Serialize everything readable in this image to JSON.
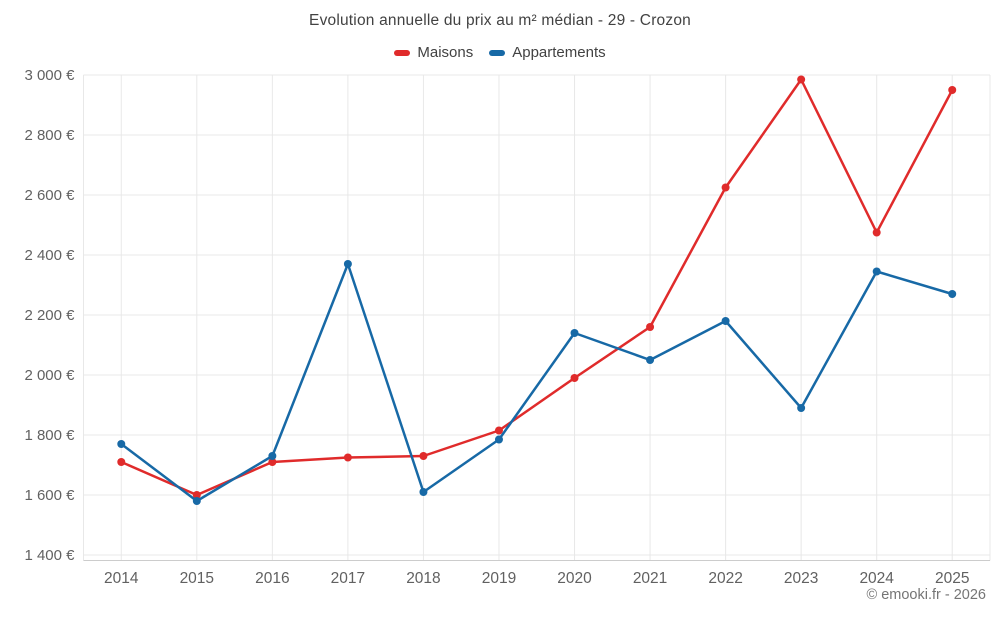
{
  "chart_data": {
    "type": "line",
    "title": "Evolution annuelle du prix au m² médian - 29 - Crozon",
    "categories": [
      "2014",
      "2015",
      "2016",
      "2017",
      "2018",
      "2019",
      "2020",
      "2021",
      "2022",
      "2023",
      "2024",
      "2025"
    ],
    "series": [
      {
        "name": "Maisons",
        "color": "#e02b2b",
        "values": [
          1710,
          1600,
          1710,
          1725,
          1730,
          1815,
          1990,
          2160,
          2625,
          2985,
          2475,
          2950
        ]
      },
      {
        "name": "Appartements",
        "color": "#1769a6",
        "values": [
          1770,
          1580,
          1730,
          2370,
          1610,
          1785,
          2140,
          2050,
          2180,
          1890,
          2345,
          2270
        ]
      }
    ],
    "xlabel": "",
    "ylabel": "",
    "ylim": [
      1400,
      3000
    ],
    "ytick_step": 200,
    "ytick_labels": [
      "1 400 €",
      "1 600 €",
      "1 800 €",
      "2 000 €",
      "2 200 €",
      "2 400 €",
      "2 600 €",
      "2 800 €",
      "3 000 €"
    ],
    "grid": true,
    "legend_position": "top"
  },
  "footer": {
    "copyright": "© emooki.fr - 2026"
  },
  "colors": {
    "background": "#ffffff",
    "title_text": "#424242",
    "legend_text": "#424242",
    "axis_label": "#616161",
    "gridline": "#e8e8e8",
    "axis_line": "#cccccc",
    "footer_text": "#757575",
    "maisons": "#e02b2b",
    "appartements": "#1769a6"
  }
}
